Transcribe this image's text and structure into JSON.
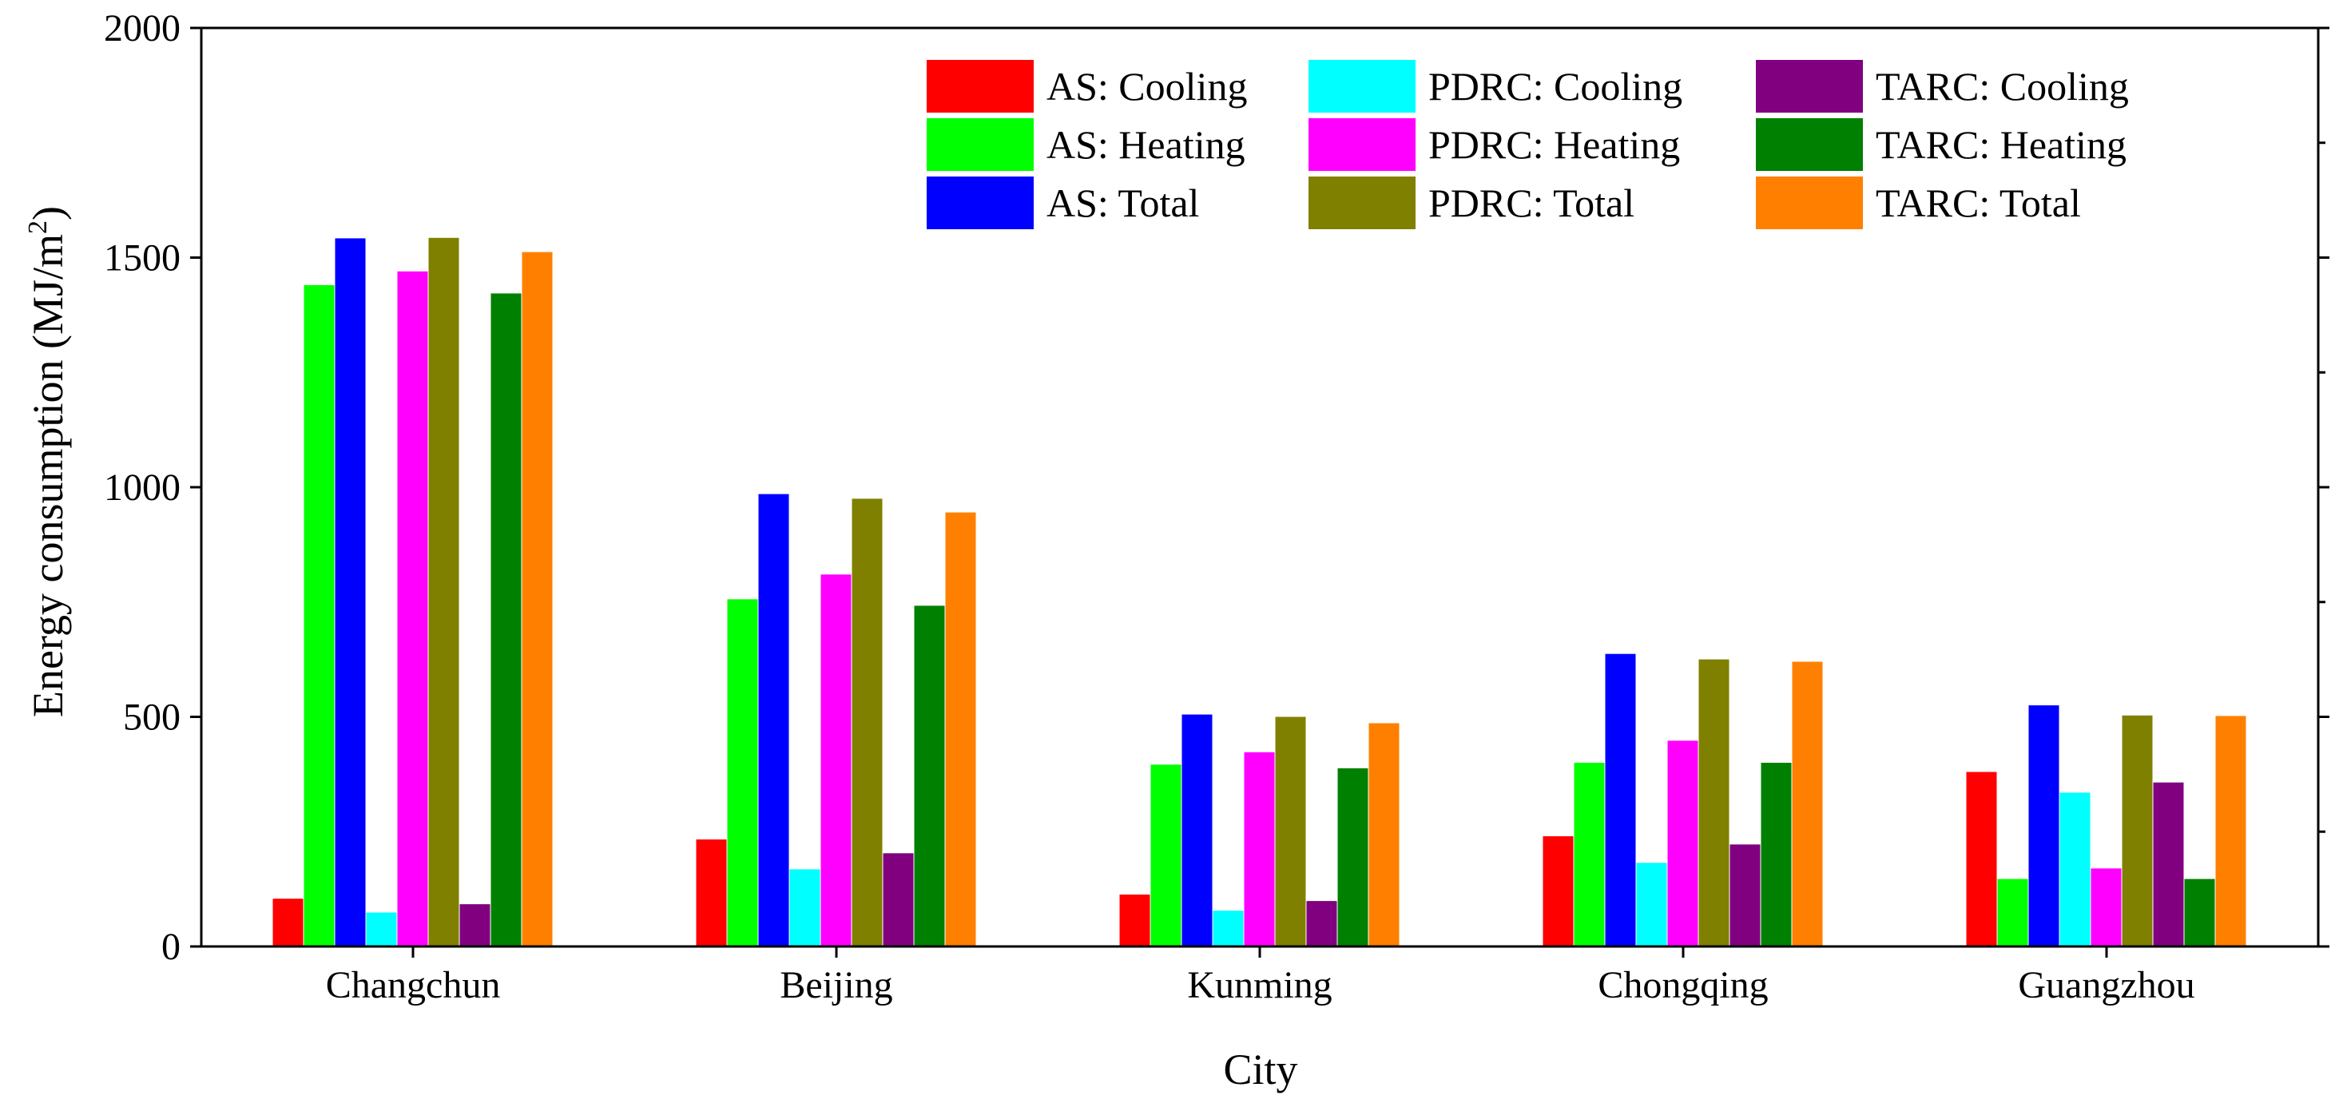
{
  "chart_data": {
    "type": "bar",
    "xlabel": "City",
    "ylabel_main": "Energy consumption (MJ/m",
    "ylabel_sup": "2",
    "ylabel_close": ")",
    "ylim": [
      0,
      2000
    ],
    "yticks": [
      "0",
      "500",
      "1000",
      "1500",
      "2000"
    ],
    "ytick_values": [
      0,
      500,
      1000,
      1500,
      2000
    ],
    "minor_ytick_values": [
      250,
      750,
      1250,
      1750
    ],
    "legend_position": "top-right",
    "categories": [
      "Changchun",
      "Beijing",
      "Kunming",
      "Chongqing",
      "Guangzhou"
    ],
    "series": [
      {
        "name": "AS: Cooling",
        "color": "#ff0000",
        "values": [
          104,
          233,
          113,
          240,
          380
        ]
      },
      {
        "name": "AS: Heating",
        "color": "#00ff00",
        "values": [
          1440,
          756,
          396,
          400,
          147
        ]
      },
      {
        "name": "AS: Total",
        "color": "#0000ff",
        "values": [
          1542,
          985,
          505,
          637,
          525
        ]
      },
      {
        "name": "PDRC: Cooling",
        "color": "#00ffff",
        "values": [
          74,
          168,
          78,
          182,
          335
        ]
      },
      {
        "name": "PDRC: Heating",
        "color": "#ff00ff",
        "values": [
          1470,
          810,
          423,
          448,
          170
        ]
      },
      {
        "name": "PDRC: Total",
        "color": "#808000",
        "values": [
          1543,
          975,
          500,
          625,
          503
        ]
      },
      {
        "name": "TARC: Cooling",
        "color": "#800080",
        "values": [
          92,
          203,
          99,
          222,
          357
        ]
      },
      {
        "name": "TARC: Heating",
        "color": "#008000",
        "values": [
          1422,
          742,
          388,
          400,
          147
        ]
      },
      {
        "name": "TARC: Total",
        "color": "#ff8000",
        "values": [
          1512,
          945,
          486,
          620,
          502
        ]
      }
    ]
  }
}
